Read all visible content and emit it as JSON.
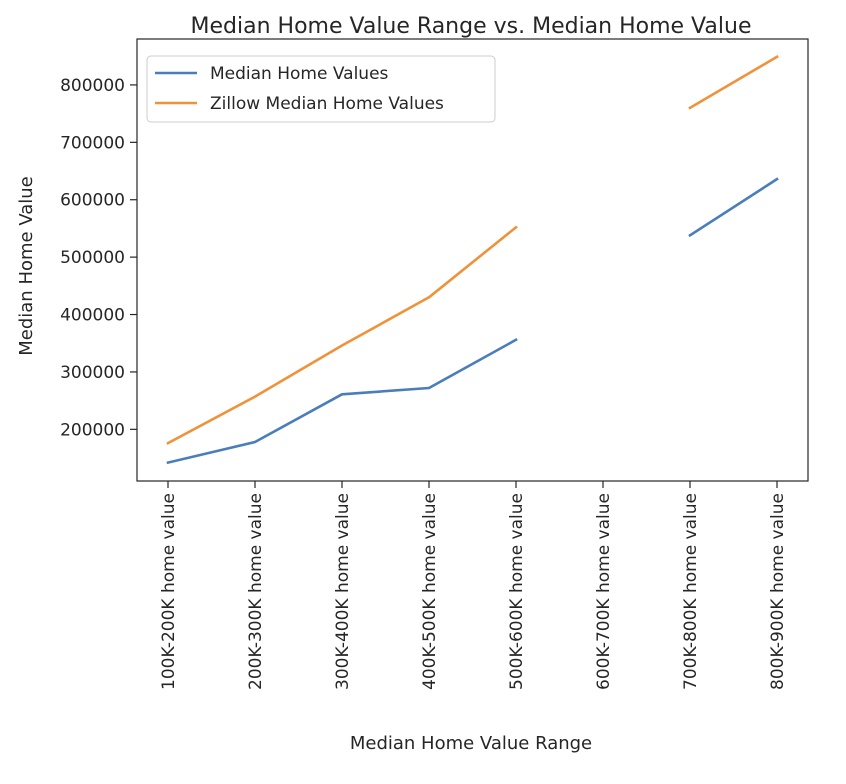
{
  "chart_data": {
    "type": "line",
    "title": "Median Home Value Range vs. Median Home Value",
    "xlabel": "Median Home Value Range",
    "ylabel": "Median Home Value",
    "categories": [
      "100K-200K home value",
      "200K-300K home value",
      "300K-400K home value",
      "400K-500K home value",
      "500K-600K home value",
      "600K-700K home value",
      "700K-800K home value",
      "800K-900K home value"
    ],
    "series": [
      {
        "name": "Median Home Values",
        "color": "#4a7ebb",
        "values": [
          142000,
          178000,
          261000,
          272000,
          356000,
          null,
          538000,
          636000
        ]
      },
      {
        "name": "Zillow Median Home Values",
        "color": "#f0923a",
        "values": [
          176000,
          257000,
          346000,
          430000,
          552000,
          null,
          760000,
          849000
        ]
      }
    ],
    "yticks": [
      200000,
      300000,
      400000,
      500000,
      600000,
      700000,
      800000
    ],
    "ylim": [
      110000,
      880000
    ],
    "grid": false,
    "legend_position": "top-left"
  }
}
